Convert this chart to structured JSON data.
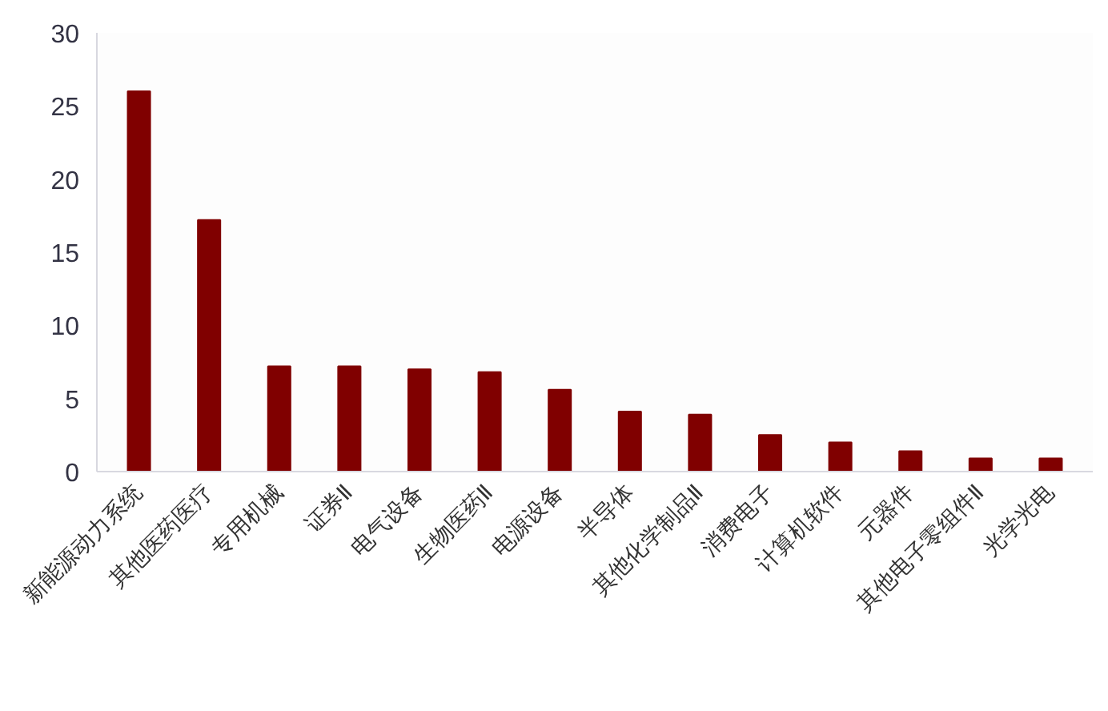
{
  "chart_data": {
    "type": "bar",
    "categories": [
      "新能源动力系统",
      "其他医药医疗",
      "专用机械",
      "证券Ⅱ",
      "电气设备",
      "生物医药Ⅱ",
      "电源设备",
      "半导体",
      "其他化学制品Ⅱ",
      "消费电子",
      "计算机软件",
      "元器件",
      "其他电子零组件Ⅱ",
      "光学光电"
    ],
    "values": [
      26,
      17.2,
      7.2,
      7.2,
      7.0,
      6.8,
      5.6,
      4.1,
      3.9,
      2.5,
      2.0,
      1.4,
      0.9,
      0.9
    ],
    "color": "#800000",
    "ylim": [
      0,
      30
    ],
    "yticks": [
      0,
      5,
      10,
      15,
      20,
      25,
      30
    ],
    "grid": false
  }
}
